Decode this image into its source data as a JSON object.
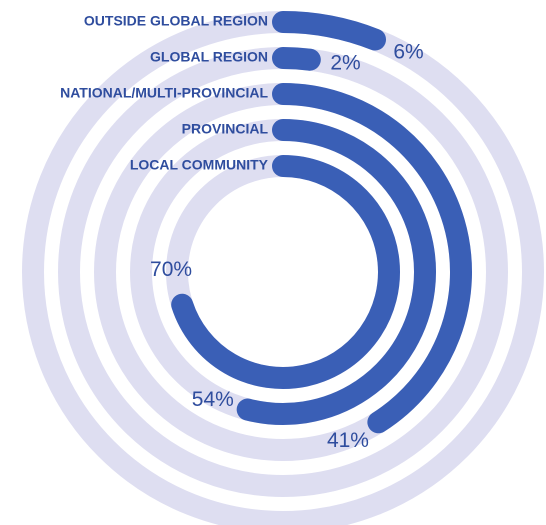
{
  "chart_data": {
    "type": "radial-bar",
    "categories": [
      "OUTSIDE GLOBAL REGION",
      "GLOBAL REGION",
      "NATIONAL/MULTI-PROVINCIAL",
      "PROVINCIAL",
      "LOCAL COMMUNITY"
    ],
    "values": [
      6,
      2,
      41,
      54,
      70
    ],
    "value_labels": [
      "6%",
      "2%",
      "41%",
      "54%",
      "70%"
    ],
    "xlim": [
      0,
      100
    ],
    "color": "#3a5fb6",
    "track_color": "#dedef1"
  }
}
